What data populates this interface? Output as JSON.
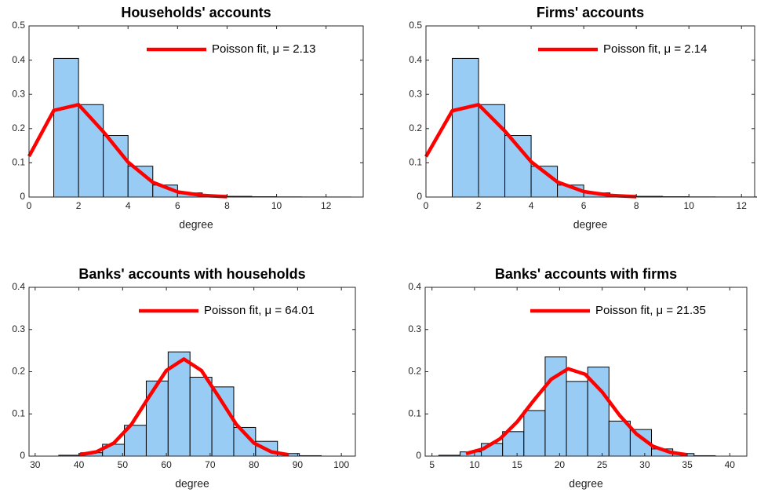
{
  "chart_data": [
    {
      "type": "histogram",
      "title": "Households' accounts",
      "xlabel": "degree",
      "bins": [
        1,
        2,
        3,
        4,
        5,
        6,
        7,
        8,
        9,
        10,
        11,
        12,
        13
      ],
      "values": [
        0.405,
        0.27,
        0.18,
        0.09,
        0.035,
        0.012,
        0.005,
        0.002,
        0.001,
        0.0005,
        0.0003,
        0.0002
      ],
      "color": "#99ccf5",
      "fit": {
        "name": "Poisson fit, μ = 2.13",
        "color": "#ff0000",
        "x": [
          0,
          1,
          2,
          3,
          4,
          5,
          6,
          7,
          8
        ],
        "values": [
          0.119,
          0.253,
          0.27,
          0.191,
          0.102,
          0.043,
          0.015,
          0.005,
          0.001
        ]
      },
      "xlim": [
        0,
        13.5
      ],
      "ylim": [
        0,
        0.5
      ],
      "xticks": [
        0,
        2,
        4,
        6,
        8,
        10,
        12
      ],
      "yticks": [
        0,
        0.1,
        0.2,
        0.3,
        0.4,
        0.5
      ],
      "legend": "upper right"
    },
    {
      "type": "histogram",
      "title": "Firms' accounts",
      "xlabel": "degree",
      "bins": [
        1,
        2,
        3,
        4,
        5,
        6,
        7,
        8,
        9,
        10,
        11,
        12,
        13
      ],
      "values": [
        0.405,
        0.27,
        0.18,
        0.09,
        0.035,
        0.012,
        0.005,
        0.002,
        0.001,
        0.0005,
        0.0003,
        0.0002
      ],
      "color": "#99ccf5",
      "fit": {
        "name": "Poisson fit, μ = 2.14",
        "color": "#ff0000",
        "x": [
          0,
          1,
          2,
          3,
          4,
          5,
          6,
          7,
          8
        ],
        "values": [
          0.118,
          0.252,
          0.27,
          0.193,
          0.103,
          0.044,
          0.016,
          0.005,
          0.001
        ]
      },
      "xlim": [
        0,
        12.5
      ],
      "ylim": [
        0,
        0.5
      ],
      "xticks": [
        0,
        2,
        4,
        6,
        8,
        10,
        12
      ],
      "yticks": [
        0,
        0.1,
        0.2,
        0.3,
        0.4,
        0.5
      ],
      "legend": "upper right"
    },
    {
      "type": "histogram",
      "title": "Banks' accounts with households",
      "xlabel": "degree",
      "bins": [
        35.4,
        40.4,
        45.4,
        50.4,
        55.4,
        60.4,
        65.4,
        70.4,
        75.4,
        80.4,
        85.4,
        90.4,
        95.4
      ],
      "values": [
        0.002,
        0.008,
        0.028,
        0.073,
        0.178,
        0.247,
        0.187,
        0.164,
        0.068,
        0.035,
        0.006,
        0.001
      ],
      "color": "#99ccf5",
      "fit": {
        "name": "Poisson fit, μ = 64.01",
        "color": "#ff0000",
        "x": [
          40,
          44,
          48,
          52,
          56,
          60,
          64,
          68,
          72,
          76,
          80,
          84,
          88
        ],
        "values": [
          0.003,
          0.01,
          0.031,
          0.075,
          0.14,
          0.203,
          0.23,
          0.203,
          0.14,
          0.075,
          0.031,
          0.01,
          0.003
        ]
      },
      "xlim": [
        28.6,
        103.2
      ],
      "ylim": [
        0,
        0.4
      ],
      "xticks": [
        30,
        40,
        50,
        60,
        70,
        80,
        90,
        100
      ],
      "yticks": [
        0,
        0.1,
        0.2,
        0.3,
        0.4
      ],
      "legend": "upper right"
    },
    {
      "type": "histogram",
      "title": "Banks' accounts with firms",
      "xlabel": "degree",
      "bins": [
        5.8,
        8.3,
        10.8,
        13.3,
        15.8,
        18.3,
        20.8,
        23.3,
        25.8,
        28.3,
        30.8,
        33.3,
        35.8,
        38.3
      ],
      "values": [
        0.002,
        0.01,
        0.03,
        0.058,
        0.108,
        0.235,
        0.177,
        0.211,
        0.083,
        0.063,
        0.017,
        0.006,
        0.001
      ],
      "color": "#99ccf5",
      "fit": {
        "name": "Poisson fit, μ = 21.35",
        "color": "#ff0000",
        "x": [
          9,
          11,
          13,
          15,
          17,
          19,
          21,
          23,
          25,
          27,
          29,
          31,
          33,
          35
        ],
        "values": [
          0.006,
          0.017,
          0.041,
          0.081,
          0.133,
          0.182,
          0.207,
          0.194,
          0.152,
          0.098,
          0.053,
          0.023,
          0.009,
          0.003
        ]
      },
      "xlim": [
        4.2,
        42
      ],
      "ylim": [
        0,
        0.4
      ],
      "xticks": [
        5,
        10,
        15,
        20,
        25,
        30,
        35,
        40
      ],
      "yticks": [
        0,
        0.1,
        0.2,
        0.3,
        0.4
      ],
      "legend": "upper right"
    }
  ]
}
